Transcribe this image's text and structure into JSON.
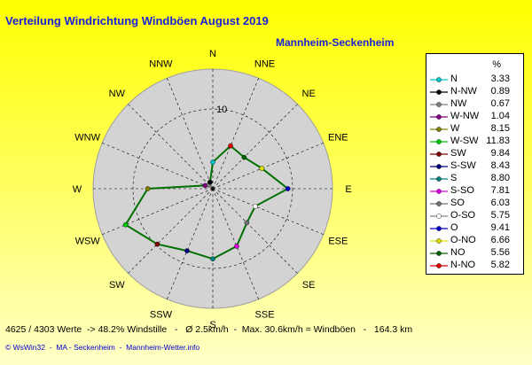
{
  "title": "Verteilung Windrichtung Windböen  August 2019",
  "subtitle": "Mannheim-Seckenheim",
  "footer_stats": "4625 / 4303 Werte  -> 48.2% Windstille   -   Ø 2.5km/h  -  Max. 30.6km/h = Windböen   -   164.3 km",
  "footer_links": "© WsWin32  -  MA - Seckenheim  -  Mannheim-Wetter.info",
  "colors": {
    "line": "#007000",
    "disc": "#d3d3d3",
    "title": "#1a22d8"
  },
  "chart_data": {
    "type": "radar",
    "grid": true,
    "legend_position": "right",
    "legend_unit": "%",
    "radial_max": 15,
    "radial_ticks": [
      10
    ],
    "directions": [
      "N",
      "NNE",
      "NE",
      "ENE",
      "E",
      "ESE",
      "SE",
      "SSE",
      "S",
      "SSW",
      "SW",
      "WSW",
      "W",
      "WNW",
      "NW",
      "NNW"
    ],
    "series": [
      {
        "name": "Windböen",
        "values": [
          3.33,
          5.82,
          5.56,
          6.66,
          9.41,
          5.75,
          6.03,
          7.81,
          8.8,
          8.43,
          9.84,
          11.83,
          8.15,
          1.04,
          0.67,
          0.89
        ]
      }
    ],
    "legend": [
      {
        "name": "N",
        "value": "3.33",
        "color": "#00c8c8"
      },
      {
        "name": "N-NW",
        "value": "0.89",
        "color": "#000000"
      },
      {
        "name": "NW",
        "value": "0.67",
        "color": "#808080"
      },
      {
        "name": "W-NW",
        "value": "1.04",
        "color": "#800080"
      },
      {
        "name": "W",
        "value": "8.15",
        "color": "#808000"
      },
      {
        "name": "W-SW",
        "value": "11.83",
        "color": "#00c800"
      },
      {
        "name": "SW",
        "value": "9.84",
        "color": "#800000"
      },
      {
        "name": "S-SW",
        "value": "8.43",
        "color": "#000080"
      },
      {
        "name": "S",
        "value": "8.80",
        "color": "#008080"
      },
      {
        "name": "S-SO",
        "value": "7.81",
        "color": "#e000e0"
      },
      {
        "name": "SO",
        "value": "6.03",
        "color": "#707070"
      },
      {
        "name": "O-SO",
        "value": "5.75",
        "color": "#ffffff"
      },
      {
        "name": "O",
        "value": "9.41",
        "color": "#0000c8"
      },
      {
        "name": "O-NO",
        "value": "6.66",
        "color": "#e0e000"
      },
      {
        "name": "NO",
        "value": "5.56",
        "color": "#006400"
      },
      {
        "name": "N-NO",
        "value": "5.82",
        "color": "#e00000"
      }
    ]
  }
}
